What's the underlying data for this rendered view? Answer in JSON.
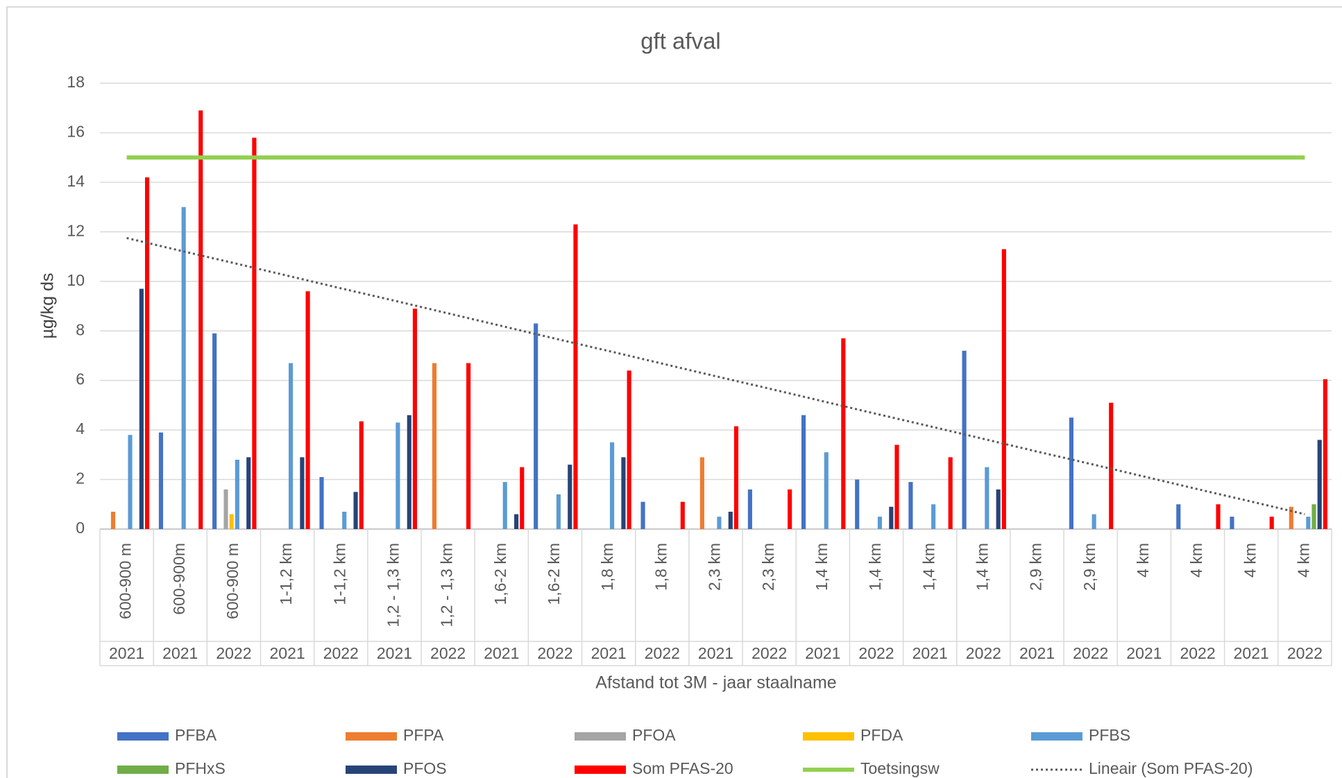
{
  "chart_data": {
    "type": "bar",
    "title": "gft afval",
    "y_label": "µg/kg ds",
    "x_label": "Afstand tot 3M - jaar staalname",
    "categories": [
      "600-900 m",
      "600-900m",
      "600-900 m",
      "1-1,2 km",
      "1-1,2 km",
      "1,2 - 1,3 km",
      "1,2 - 1,3 km",
      "1,6-2 km",
      "1,6-2 km",
      "1,8 km",
      "1,8 km",
      "2,3 km",
      "2,3 km",
      "1,4 km",
      "1,4 km",
      "1,4 km",
      "1,4 km",
      "2,9 km",
      "2,9 km",
      "4 km",
      "4 km",
      "4 km",
      "4 km"
    ],
    "category_years": [
      "2021",
      "2021",
      "2022",
      "2021",
      "2022",
      "2021",
      "2022",
      "2021",
      "2022",
      "2021",
      "2022",
      "2021",
      "2022",
      "2021",
      "2022",
      "2021",
      "2022",
      "2021",
      "2022",
      "2021",
      "2022",
      "2021",
      "2022"
    ],
    "ylim": [
      0,
      18
    ],
    "yticks": [
      0,
      2,
      4,
      6,
      8,
      10,
      12,
      14,
      16,
      18
    ],
    "grid": true,
    "series": [
      {
        "name": "PFBA",
        "color": "#4472c4",
        "values": [
          null,
          3.9,
          7.9,
          null,
          2.1,
          null,
          null,
          null,
          8.3,
          null,
          1.1,
          null,
          1.6,
          4.6,
          2.0,
          1.9,
          7.2,
          null,
          4.5,
          null,
          1.0,
          0.5,
          null
        ]
      },
      {
        "name": "PFPA",
        "color": "#ed7d31",
        "values": [
          0.7,
          null,
          null,
          null,
          null,
          null,
          6.7,
          null,
          null,
          null,
          null,
          2.9,
          null,
          null,
          null,
          null,
          null,
          null,
          null,
          null,
          null,
          null,
          0.9
        ]
      },
      {
        "name": "PFOA",
        "color": "#a5a5a5",
        "values": [
          null,
          null,
          1.6,
          null,
          null,
          null,
          null,
          null,
          null,
          null,
          null,
          null,
          null,
          null,
          null,
          null,
          null,
          null,
          null,
          null,
          null,
          null,
          null
        ]
      },
      {
        "name": "PFDA",
        "color": "#ffc000",
        "values": [
          null,
          null,
          0.6,
          null,
          null,
          null,
          null,
          null,
          null,
          null,
          null,
          null,
          null,
          null,
          null,
          null,
          null,
          null,
          null,
          null,
          null,
          null,
          null
        ]
      },
      {
        "name": "PFBS",
        "color": "#5b9bd5",
        "values": [
          3.8,
          13.0,
          2.8,
          6.7,
          0.7,
          4.3,
          null,
          1.9,
          1.4,
          3.5,
          null,
          0.5,
          null,
          3.1,
          0.5,
          1.0,
          2.5,
          null,
          0.6,
          null,
          null,
          null,
          0.5
        ]
      },
      {
        "name": "PFHxS",
        "color": "#70ad47",
        "values": [
          null,
          null,
          null,
          null,
          null,
          null,
          null,
          null,
          null,
          null,
          null,
          null,
          null,
          null,
          null,
          null,
          null,
          null,
          null,
          null,
          null,
          null,
          1.0
        ]
      },
      {
        "name": "PFOS",
        "color": "#264478",
        "values": [
          9.7,
          null,
          2.9,
          2.9,
          1.5,
          4.6,
          null,
          0.6,
          2.6,
          2.9,
          null,
          0.7,
          null,
          null,
          0.9,
          null,
          1.6,
          null,
          null,
          null,
          null,
          null,
          3.6
        ]
      },
      {
        "name": "Som PFAS-20",
        "color": "#ff0000",
        "values": [
          14.2,
          16.9,
          15.8,
          9.6,
          4.35,
          8.9,
          6.7,
          2.5,
          12.3,
          6.4,
          1.1,
          4.15,
          1.6,
          7.7,
          3.4,
          2.9,
          11.3,
          null,
          5.1,
          null,
          1.0,
          0.5,
          6.05
        ]
      },
      {
        "name": "Toetsingsw",
        "color": "#92d050",
        "kind": "line",
        "values": [
          15,
          15,
          15,
          15,
          15,
          15,
          15,
          15,
          15,
          15,
          15,
          15,
          15,
          15,
          15,
          15,
          15,
          15,
          15,
          15,
          15,
          15,
          15
        ]
      },
      {
        "name": "Lineair (Som PFAS-20)",
        "color": "#595959",
        "kind": "line",
        "dotted": true,
        "values": [
          11.75,
          11.24,
          10.74,
          10.23,
          9.72,
          9.22,
          8.71,
          8.2,
          7.69,
          7.19,
          6.68,
          6.17,
          5.67,
          5.16,
          4.65,
          4.15,
          3.64,
          3.13,
          2.63,
          2.12,
          1.61,
          1.11,
          0.6
        ]
      }
    ]
  }
}
